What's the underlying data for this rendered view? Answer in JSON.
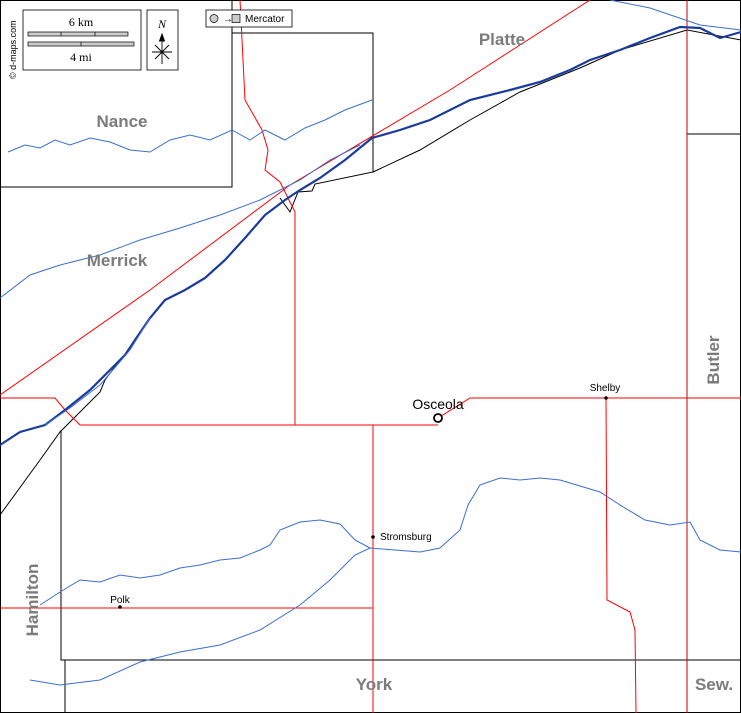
{
  "credit": "© d-maps.com",
  "scale": {
    "km_label": "6 km",
    "mi_label": "4 mi"
  },
  "north_label": "N",
  "projection_label": "Mercator",
  "counties": {
    "platte": "Platte",
    "nance": "Nance",
    "merrick": "Merrick",
    "butler": "Butler",
    "hamilton": "Hamilton",
    "york": "York",
    "seward": "Sew."
  },
  "towns": {
    "osceola": "Osceola",
    "shelby": "Shelby",
    "stromsburg": "Stromsburg",
    "polk": "Polk"
  },
  "colors": {
    "border": "#000000",
    "road": "#ff0000",
    "river_main": "#1a3b9c",
    "stream": "#3a6fd0",
    "label_grey": "#7b7b7b"
  }
}
